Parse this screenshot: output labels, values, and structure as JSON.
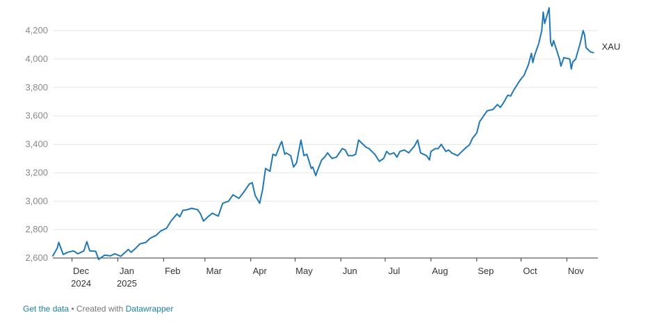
{
  "chart_data": {
    "type": "line",
    "title": "",
    "xlabel": "",
    "ylabel": "",
    "ylim": [
      2600,
      4200
    ],
    "yticks": [
      2600,
      2800,
      3000,
      3200,
      3400,
      3600,
      3800,
      4000,
      4200
    ],
    "ytick_labels": [
      "2,600",
      "2,800",
      "3,000",
      "3,200",
      "3,400",
      "3,600",
      "3,800",
      "4,000",
      "4,200"
    ],
    "xlim": [
      "2024-11-18",
      "2025-11-22"
    ],
    "xticks": [
      {
        "date": "2024-12-01",
        "label": "Dec",
        "sublabel": "2024"
      },
      {
        "date": "2025-01-01",
        "label": "Jan",
        "sublabel": "2025"
      },
      {
        "date": "2025-02-01",
        "label": "Feb",
        "sublabel": ""
      },
      {
        "date": "2025-03-01",
        "label": "Mar",
        "sublabel": ""
      },
      {
        "date": "2025-04-01",
        "label": "Apr",
        "sublabel": ""
      },
      {
        "date": "2025-05-01",
        "label": "May",
        "sublabel": ""
      },
      {
        "date": "2025-06-01",
        "label": "Jun",
        "sublabel": ""
      },
      {
        "date": "2025-07-01",
        "label": "Jul",
        "sublabel": ""
      },
      {
        "date": "2025-08-01",
        "label": "Aug",
        "sublabel": ""
      },
      {
        "date": "2025-09-01",
        "label": "Sep",
        "sublabel": ""
      },
      {
        "date": "2025-10-01",
        "label": "Oct",
        "sublabel": ""
      },
      {
        "date": "2025-11-01",
        "label": "Nov",
        "sublabel": ""
      }
    ],
    "grid": true,
    "series": [
      {
        "name": "XAU",
        "color": "#1f77b4",
        "points": [
          [
            "2024-11-18",
            2615
          ],
          [
            "2024-11-21",
            2670
          ],
          [
            "2024-11-22",
            2710
          ],
          [
            "2024-11-25",
            2625
          ],
          [
            "2024-11-28",
            2640
          ],
          [
            "2024-12-02",
            2650
          ],
          [
            "2024-12-05",
            2630
          ],
          [
            "2024-12-09",
            2650
          ],
          [
            "2024-12-11",
            2715
          ],
          [
            "2024-12-13",
            2650
          ],
          [
            "2024-12-17",
            2648
          ],
          [
            "2024-12-19",
            2590
          ],
          [
            "2024-12-23",
            2620
          ],
          [
            "2024-12-27",
            2615
          ],
          [
            "2024-12-30",
            2630
          ],
          [
            "2025-01-03",
            2612
          ],
          [
            "2025-01-06",
            2640
          ],
          [
            "2025-01-08",
            2660
          ],
          [
            "2025-01-10",
            2640
          ],
          [
            "2025-01-13",
            2668
          ],
          [
            "2025-01-16",
            2700
          ],
          [
            "2025-01-20",
            2710
          ],
          [
            "2025-01-23",
            2740
          ],
          [
            "2025-01-27",
            2760
          ],
          [
            "2025-01-30",
            2790
          ],
          [
            "2025-02-03",
            2810
          ],
          [
            "2025-02-06",
            2860
          ],
          [
            "2025-02-10",
            2910
          ],
          [
            "2025-02-12",
            2890
          ],
          [
            "2025-02-14",
            2935
          ],
          [
            "2025-02-17",
            2940
          ],
          [
            "2025-02-20",
            2950
          ],
          [
            "2025-02-24",
            2940
          ],
          [
            "2025-02-26",
            2910
          ],
          [
            "2025-02-28",
            2860
          ],
          [
            "2025-03-03",
            2890
          ],
          [
            "2025-03-06",
            2915
          ],
          [
            "2025-03-10",
            2895
          ],
          [
            "2025-03-13",
            2985
          ],
          [
            "2025-03-17",
            3000
          ],
          [
            "2025-03-20",
            3045
          ],
          [
            "2025-03-24",
            3020
          ],
          [
            "2025-03-27",
            3060
          ],
          [
            "2025-03-31",
            3120
          ],
          [
            "2025-04-02",
            3130
          ],
          [
            "2025-04-04",
            3040
          ],
          [
            "2025-04-07",
            2985
          ],
          [
            "2025-04-09",
            3080
          ],
          [
            "2025-04-11",
            3230
          ],
          [
            "2025-04-14",
            3210
          ],
          [
            "2025-04-16",
            3330
          ],
          [
            "2025-04-18",
            3320
          ],
          [
            "2025-04-21",
            3400
          ],
          [
            "2025-04-22",
            3420
          ],
          [
            "2025-04-24",
            3330
          ],
          [
            "2025-04-25",
            3340
          ],
          [
            "2025-04-28",
            3320
          ],
          [
            "2025-04-30",
            3240
          ],
          [
            "2025-05-02",
            3270
          ],
          [
            "2025-05-05",
            3430
          ],
          [
            "2025-05-07",
            3320
          ],
          [
            "2025-05-09",
            3330
          ],
          [
            "2025-05-12",
            3230
          ],
          [
            "2025-05-13",
            3240
          ],
          [
            "2025-05-15",
            3180
          ],
          [
            "2025-05-16",
            3210
          ],
          [
            "2025-05-19",
            3290
          ],
          [
            "2025-05-21",
            3310
          ],
          [
            "2025-05-23",
            3340
          ],
          [
            "2025-05-26",
            3300
          ],
          [
            "2025-05-29",
            3310
          ],
          [
            "2025-06-02",
            3370
          ],
          [
            "2025-06-04",
            3360
          ],
          [
            "2025-06-06",
            3320
          ],
          [
            "2025-06-09",
            3320
          ],
          [
            "2025-06-11",
            3330
          ],
          [
            "2025-06-13",
            3430
          ],
          [
            "2025-06-16",
            3400
          ],
          [
            "2025-06-18",
            3380
          ],
          [
            "2025-06-20",
            3370
          ],
          [
            "2025-06-24",
            3330
          ],
          [
            "2025-06-27",
            3280
          ],
          [
            "2025-06-30",
            3300
          ],
          [
            "2025-07-02",
            3350
          ],
          [
            "2025-07-04",
            3330
          ],
          [
            "2025-07-07",
            3340
          ],
          [
            "2025-07-09",
            3310
          ],
          [
            "2025-07-11",
            3350
          ],
          [
            "2025-07-14",
            3360
          ],
          [
            "2025-07-17",
            3340
          ],
          [
            "2025-07-21",
            3390
          ],
          [
            "2025-07-23",
            3430
          ],
          [
            "2025-07-25",
            3340
          ],
          [
            "2025-07-29",
            3320
          ],
          [
            "2025-07-31",
            3290
          ],
          [
            "2025-08-01",
            3350
          ],
          [
            "2025-08-04",
            3370
          ],
          [
            "2025-08-06",
            3370
          ],
          [
            "2025-08-08",
            3400
          ],
          [
            "2025-08-11",
            3350
          ],
          [
            "2025-08-13",
            3360
          ],
          [
            "2025-08-15",
            3340
          ],
          [
            "2025-08-19",
            3320
          ],
          [
            "2025-08-21",
            3340
          ],
          [
            "2025-08-25",
            3380
          ],
          [
            "2025-08-27",
            3395
          ],
          [
            "2025-08-29",
            3440
          ],
          [
            "2025-09-01",
            3480
          ],
          [
            "2025-09-03",
            3560
          ],
          [
            "2025-09-05",
            3590
          ],
          [
            "2025-09-08",
            3635
          ],
          [
            "2025-09-10",
            3640
          ],
          [
            "2025-09-12",
            3645
          ],
          [
            "2025-09-15",
            3680
          ],
          [
            "2025-09-17",
            3660
          ],
          [
            "2025-09-19",
            3690
          ],
          [
            "2025-09-22",
            3745
          ],
          [
            "2025-09-24",
            3740
          ],
          [
            "2025-09-26",
            3780
          ],
          [
            "2025-09-29",
            3830
          ],
          [
            "2025-10-01",
            3860
          ],
          [
            "2025-10-03",
            3885
          ],
          [
            "2025-10-06",
            3960
          ],
          [
            "2025-10-08",
            4040
          ],
          [
            "2025-10-09",
            3975
          ],
          [
            "2025-10-10",
            4020
          ],
          [
            "2025-10-13",
            4110
          ],
          [
            "2025-10-15",
            4200
          ],
          [
            "2025-10-16",
            4330
          ],
          [
            "2025-10-17",
            4250
          ],
          [
            "2025-10-20",
            4360
          ],
          [
            "2025-10-21",
            4120
          ],
          [
            "2025-10-22",
            4090
          ],
          [
            "2025-10-23",
            4130
          ],
          [
            "2025-10-27",
            4000
          ],
          [
            "2025-10-28",
            3950
          ],
          [
            "2025-10-30",
            4010
          ],
          [
            "2025-11-03",
            4000
          ],
          [
            "2025-11-04",
            3930
          ],
          [
            "2025-11-05",
            3980
          ],
          [
            "2025-11-07",
            4000
          ],
          [
            "2025-11-10",
            4110
          ],
          [
            "2025-11-12",
            4200
          ],
          [
            "2025-11-13",
            4170
          ],
          [
            "2025-11-14",
            4080
          ],
          [
            "2025-11-17",
            4050
          ],
          [
            "2025-11-19",
            4045
          ]
        ]
      }
    ]
  },
  "footer": {
    "link1": "Get the data",
    "separator": " • Created with ",
    "link2": "Datawrapper"
  }
}
